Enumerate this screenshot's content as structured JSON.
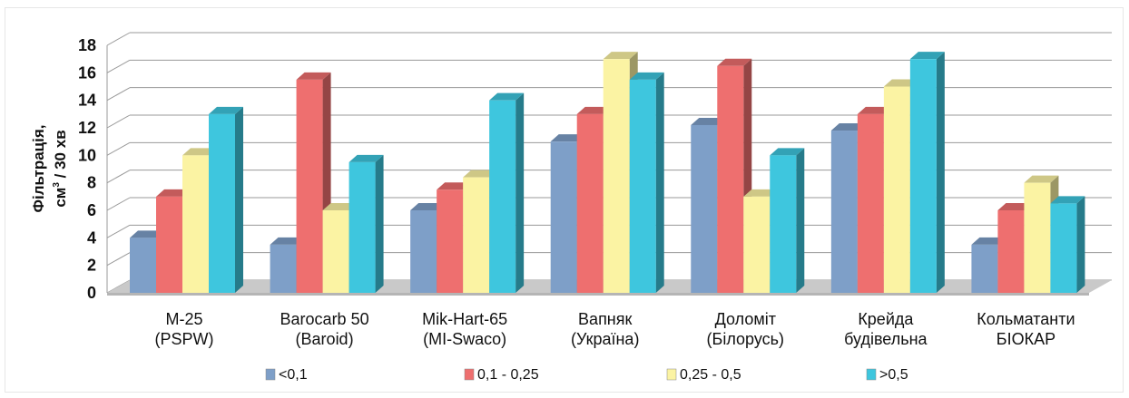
{
  "chart_data": {
    "type": "bar",
    "ylabel_line1": "Фільтрація,",
    "ylabel_line2_pre": "см",
    "ylabel_line2_sup": "3",
    "ylabel_line2_post": " / 30 хв",
    "ylim": [
      0,
      18
    ],
    "yticks": [
      "0",
      "2",
      "4",
      "6",
      "8",
      "10",
      "12",
      "14",
      "16",
      "18"
    ],
    "categories": [
      [
        "М-25",
        "(PSPW)"
      ],
      [
        "Barocarb 50",
        "(Baroid)"
      ],
      [
        "Mik-Hart-65",
        "(MI-Swaco)"
      ],
      [
        "Вапняк",
        "(Україна)"
      ],
      [
        "Доломіт",
        "(Білорусь)"
      ],
      [
        "Крейда",
        "будівельна"
      ],
      [
        "Кольматанти",
        "БІОКАР"
      ]
    ],
    "series": [
      {
        "name": "<0,1",
        "color": "#7e9fc8",
        "values": [
          4,
          3.5,
          6,
          11,
          12.2,
          11.8,
          3.5
        ]
      },
      {
        "name": "0,1 - 0,25",
        "color": "#ee6f6f",
        "values": [
          7,
          15.5,
          7.5,
          13,
          16.5,
          13,
          6
        ]
      },
      {
        "name": "0,25 - 0,5",
        "color": "#fbf3a3",
        "values": [
          10,
          6,
          8.4,
          17,
          7,
          15,
          8
        ]
      },
      {
        "name": ">0,5",
        "color": "#3ec6de",
        "values": [
          13,
          9.5,
          14,
          15.5,
          10,
          17,
          6.5
        ]
      }
    ],
    "grid": true,
    "legend_position": "bottom"
  }
}
